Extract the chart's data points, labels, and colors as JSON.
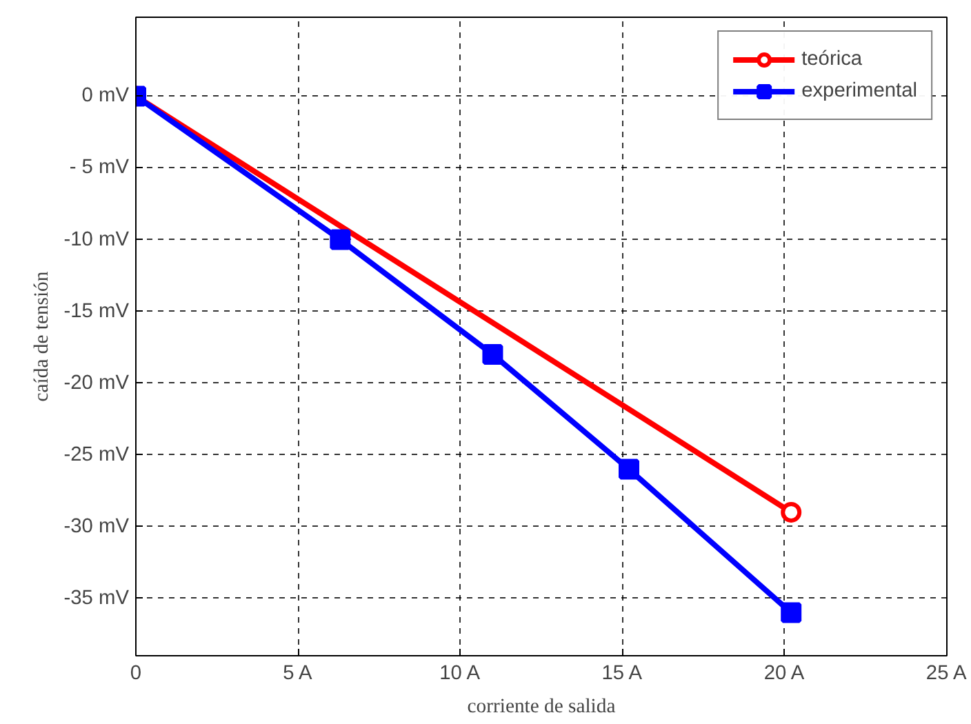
{
  "chart_data": {
    "type": "line",
    "xlabel": "corriente de salida",
    "ylabel": "caída de tensión",
    "xlim": [
      0,
      25
    ],
    "ylim": [
      -39,
      5.5
    ],
    "xticks": [
      {
        "value": 0,
        "label": "0"
      },
      {
        "value": 5,
        "label": "5 A"
      },
      {
        "value": 10,
        "label": "10 A"
      },
      {
        "value": 15,
        "label": "15 A"
      },
      {
        "value": 20,
        "label": "20 A"
      },
      {
        "value": 25,
        "label": "25 A"
      }
    ],
    "yticks": [
      {
        "value": 0,
        "label": "0 mV"
      },
      {
        "value": -5,
        "label": "- 5 mV"
      },
      {
        "value": -10,
        "label": "-10 mV"
      },
      {
        "value": -15,
        "label": "-15 mV"
      },
      {
        "value": -20,
        "label": "-20 mV"
      },
      {
        "value": -25,
        "label": "-25 mV"
      },
      {
        "value": -30,
        "label": "-30 mV"
      },
      {
        "value": -35,
        "label": "-35 mV"
      }
    ],
    "grid": true,
    "legend": "top right",
    "line_style": "solid",
    "series": [
      {
        "name": "teórica",
        "color": "#ff0000",
        "marker": "circle",
        "x": [
          0,
          20.2
        ],
        "values": [
          0,
          -29
        ]
      },
      {
        "name": "experimental",
        "color": "#0000ff",
        "marker": "square",
        "x": [
          0,
          6.3,
          11,
          15.2,
          20.2
        ],
        "values": [
          0,
          -10,
          -18,
          -26,
          -36
        ]
      }
    ]
  }
}
